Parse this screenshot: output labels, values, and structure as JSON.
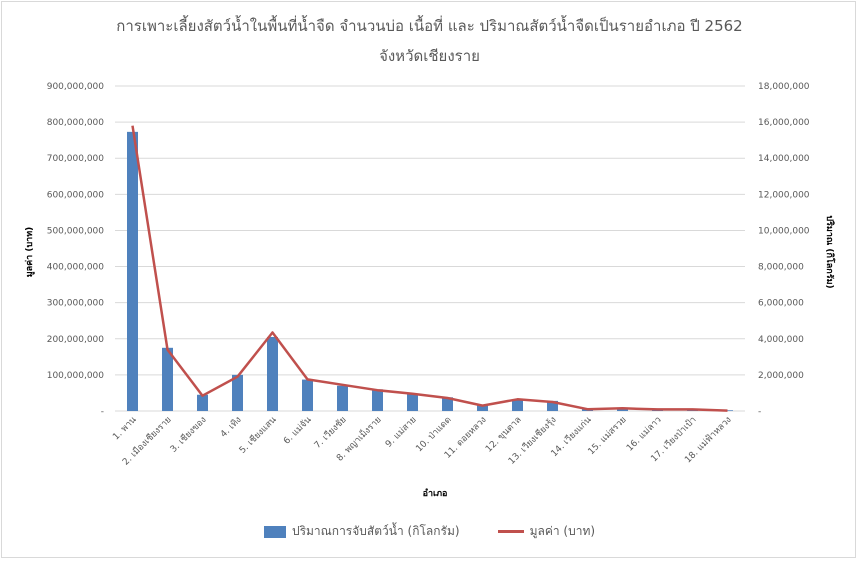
{
  "chart_data": {
    "type": "bar+line",
    "title_line1": "การเพาะเลี้ยงสัตว์น้ำในพื้นที่น้ำจืด จำนวนบ่อ เนื้อที่ และ ปริมาณสัตว์น้ำจืดเป็นรายอำเภอ ปี 2562",
    "title_line2": "จังหวัดเชียงราย",
    "xlabel": "อำเภอ",
    "ylabel_left": "มูลค่า (บาท)",
    "ylabel_right": "ปริมาณ (กิโลกรัม)",
    "ylim_left": [
      0,
      900000000
    ],
    "ylim_right": [
      0,
      18000000
    ],
    "yticks_left": [
      "-",
      "100,000,000",
      "200,000,000",
      "300,000,000",
      "400,000,000",
      "500,000,000",
      "600,000,000",
      "700,000,000",
      "800,000,000",
      "900,000,000"
    ],
    "yticks_right": [
      "-",
      "2,000,000",
      "4,000,000",
      "6,000,000",
      "8,000,000",
      "10,000,000",
      "12,000,000",
      "14,000,000",
      "16,000,000",
      "18,000,000"
    ],
    "categories": [
      "1. พาน",
      "2. เมืองเชียงราย",
      "3. เชียงของ",
      "4. เทิง",
      "5. เชียงแสน",
      "6. แม่จัน",
      "7. เวียงชัย",
      "8. พญาเม็งราย",
      "9. แม่สาย",
      "10. ป่าแดด",
      "11. ดอยหลวง",
      "12. ขุนตาล",
      "13. เวียงเชียงรุ้ง",
      "14. เวียงแก่น",
      "15. แม่สรวย",
      "16. แม่ลาว",
      "17. เวียงป่าเป้า",
      "18. แม่ฟ้าหลวง"
    ],
    "series": [
      {
        "name": "ปริมาณการจับสัตว์น้ำ (กิโลกรัม)",
        "type": "bar",
        "axis": "left",
        "color": "#4f81bd",
        "values": [
          773000000,
          175000000,
          45000000,
          100000000,
          205000000,
          87000000,
          70000000,
          60000000,
          47000000,
          38000000,
          18000000,
          32000000,
          28000000,
          6000000,
          7000000,
          4000000,
          4000000,
          2000000
        ]
      },
      {
        "name": "มูลค่า (บาท)",
        "type": "line",
        "axis": "right",
        "color": "#c0504d",
        "values": [
          15800000,
          3400000,
          850000,
          1900000,
          4350000,
          1750000,
          1450000,
          1150000,
          950000,
          720000,
          300000,
          650000,
          500000,
          100000,
          150000,
          90000,
          90000,
          20000
        ]
      }
    ],
    "legend_position": "bottom"
  }
}
